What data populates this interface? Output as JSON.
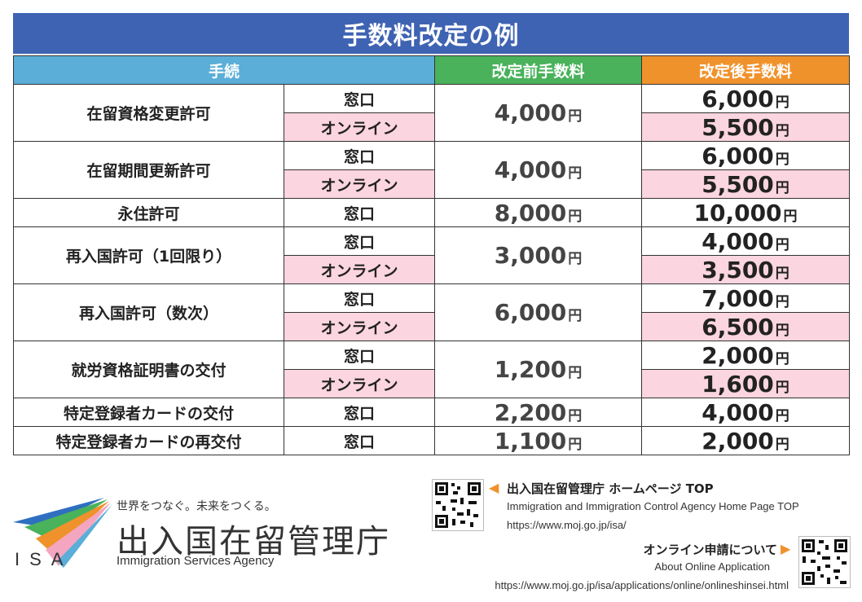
{
  "title": "手数料改定の例",
  "headers": {
    "procedure": "手続",
    "before": "改定前手数料",
    "after": "改定後手数料"
  },
  "yen": "円",
  "rows": [
    {
      "name": "在留資格変更許可",
      "before": "4,000",
      "methods": [
        {
          "label": "窓口",
          "after": "6,000"
        },
        {
          "label": "オンライン",
          "after": "5,500"
        }
      ]
    },
    {
      "name": "在留期間更新許可",
      "before": "4,000",
      "methods": [
        {
          "label": "窓口",
          "after": "6,000"
        },
        {
          "label": "オンライン",
          "after": "5,500"
        }
      ]
    },
    {
      "name": "永住許可",
      "before": "8,000",
      "methods": [
        {
          "label": "窓口",
          "after": "10,000"
        }
      ]
    },
    {
      "name": "再入国許可（1回限り）",
      "before": "3,000",
      "methods": [
        {
          "label": "窓口",
          "after": "4,000"
        },
        {
          "label": "オンライン",
          "after": "3,500"
        }
      ]
    },
    {
      "name": "再入国許可（数次）",
      "before": "6,000",
      "methods": [
        {
          "label": "窓口",
          "after": "7,000"
        },
        {
          "label": "オンライン",
          "after": "6,500"
        }
      ]
    },
    {
      "name": "就労資格証明書の交付",
      "before": "1,200",
      "methods": [
        {
          "label": "窓口",
          "after": "2,000"
        },
        {
          "label": "オンライン",
          "after": "1,600"
        }
      ]
    },
    {
      "name": "特定登録者カードの交付",
      "before": "2,200",
      "methods": [
        {
          "label": "窓口",
          "after": "4,000"
        }
      ]
    },
    {
      "name": "特定登録者カードの再交付",
      "before": "1,100",
      "methods": [
        {
          "label": "窓口",
          "after": "2,000"
        }
      ]
    }
  ],
  "footer": {
    "isa": "ISA",
    "tagline": "世界をつなぐ。未来をつくる。",
    "agency_jp": "出入国在留管理庁",
    "agency_en": "Immigration Services Agency",
    "link1": {
      "title": "出入国在留管理庁 ホームページ TOP",
      "en": "Immigration and Immigration Control Agency Home Page TOP",
      "url": "https://www.moj.go.jp/isa/",
      "arrow_icon": "triangle-left-icon"
    },
    "link2": {
      "title": "オンライン申請について",
      "en": "About Online Application",
      "url": "https://www.moj.go.jp/isa/applications/online/onlineshinsei.html",
      "arrow_icon": "triangle-right-icon"
    }
  },
  "colors": {
    "title_bg": "#3f63b3",
    "proc_header": "#5aaed8",
    "before_header": "#49b25b",
    "after_header": "#f0922c",
    "online_bg": "#fbd5df",
    "logo_blue": "#2e6fc0",
    "logo_orange": "#f0922c",
    "logo_green": "#49b25b",
    "logo_pink": "#f4a6c0"
  }
}
